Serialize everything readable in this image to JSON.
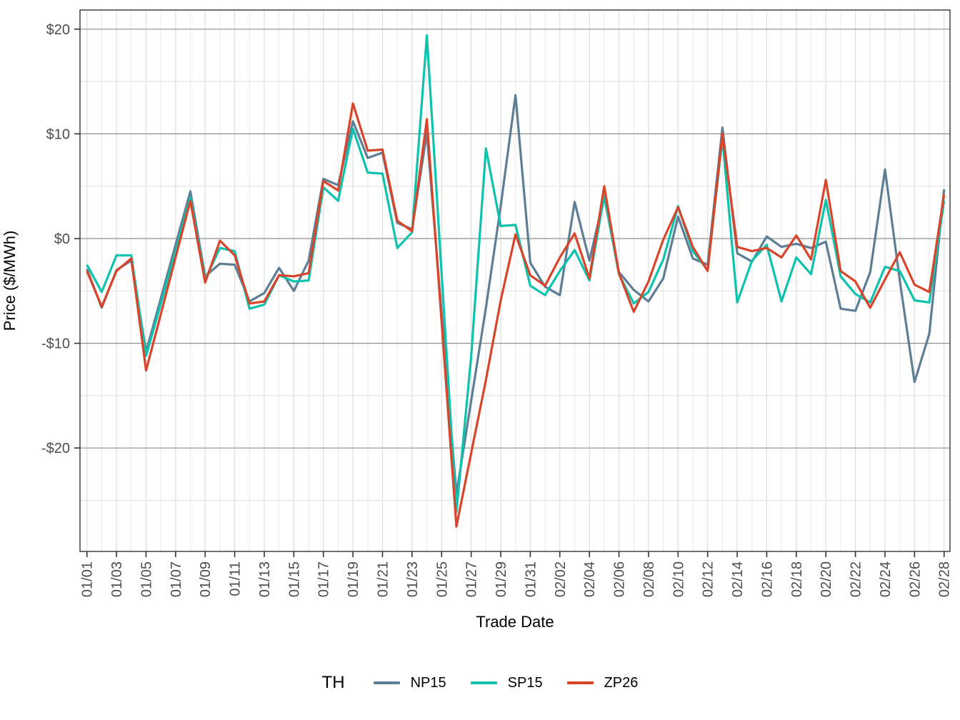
{
  "figure": {
    "xlabel": "Trade Date",
    "ylabel": "Price ($/MWh)"
  },
  "axes": {
    "y_tick_labels": [
      "$20",
      "$10",
      "$0",
      "-$10",
      "-$20"
    ],
    "y_tick_values": [
      20,
      10,
      0,
      -10,
      -20
    ],
    "y_minor_values": [
      15,
      5,
      -5,
      -15,
      -25
    ],
    "x_tick_labels": [
      "01/01",
      "01/03",
      "01/05",
      "01/07",
      "01/09",
      "01/11",
      "01/13",
      "01/15",
      "01/17",
      "01/19",
      "01/21",
      "01/23",
      "01/25",
      "01/27",
      "01/29",
      "01/31",
      "02/02",
      "02/04",
      "02/06",
      "02/08",
      "02/10",
      "02/12",
      "02/14",
      "02/16",
      "02/18",
      "02/20",
      "02/22",
      "02/24",
      "02/26",
      "02/28"
    ]
  },
  "legend": {
    "title": "TH",
    "entries": [
      {
        "label": "NP15",
        "color": "#5e7e96"
      },
      {
        "label": "SP15",
        "color": "#0dc3ae"
      },
      {
        "label": "ZP26",
        "color": "#d9452b"
      }
    ]
  },
  "style_colors": {
    "panel_border": "#333333",
    "grid_major_h": "#8f8f8f",
    "grid_minor_h": "#e4e4e4",
    "grid_major_v": "#dedede",
    "grid_minor_v": "#ececec",
    "tick_mark": "#333333",
    "tick_label": "#4d4d4d"
  },
  "chart_data": {
    "type": "line",
    "title": "",
    "xlabel": "Trade Date",
    "ylabel": "Price ($/MWh)",
    "x": [
      "01/01",
      "01/02",
      "01/03",
      "01/04",
      "01/05",
      "01/06",
      "01/07",
      "01/08",
      "01/09",
      "01/10",
      "01/11",
      "01/12",
      "01/13",
      "01/14",
      "01/15",
      "01/16",
      "01/17",
      "01/18",
      "01/19",
      "01/20",
      "01/21",
      "01/22",
      "01/23",
      "01/24",
      "01/25",
      "01/26",
      "01/27",
      "01/28",
      "01/29",
      "01/30",
      "01/31",
      "02/01",
      "02/02",
      "02/03",
      "02/04",
      "02/05",
      "02/06",
      "02/07",
      "02/08",
      "02/09",
      "02/10",
      "02/11",
      "02/12",
      "02/13",
      "02/14",
      "02/15",
      "02/16",
      "02/17",
      "02/18",
      "02/19",
      "02/20",
      "02/21",
      "02/22",
      "02/23",
      "02/24",
      "02/25",
      "02/26",
      "02/27",
      "02/28"
    ],
    "series": [
      {
        "name": "NP15",
        "color": "#5e7e96",
        "values": [
          -2.9,
          -6.6,
          -3.0,
          -2.1,
          -10.8,
          -5.7,
          -0.6,
          4.5,
          -3.6,
          -2.4,
          -2.5,
          -6.0,
          -5.2,
          -2.8,
          -5.0,
          -2.1,
          5.7,
          5.1,
          11.2,
          7.7,
          8.2,
          1.5,
          0.9,
          10.1,
          -7.2,
          -24.4,
          -15.5,
          -6.6,
          3.1,
          13.7,
          -2.3,
          -4.6,
          -5.4,
          3.5,
          -2.1,
          4.0,
          -3.2,
          -4.9,
          -6.0,
          -3.8,
          2.1,
          -1.9,
          -2.5,
          10.6,
          -1.4,
          -2.2,
          0.2,
          -0.8,
          -0.5,
          -0.9,
          -0.3,
          -6.7,
          -6.9,
          -3.2,
          6.6,
          -4.0,
          -13.7,
          -9.1,
          4.7
        ]
      },
      {
        "name": "SP15",
        "color": "#0dc3ae",
        "values": [
          -2.5,
          -5.1,
          -1.6,
          -1.6,
          -11.2,
          -6.2,
          -1.2,
          3.9,
          -3.9,
          -0.9,
          -1.2,
          -6.7,
          -6.3,
          -3.5,
          -4.1,
          -4.0,
          4.9,
          3.6,
          10.5,
          6.3,
          6.2,
          -0.9,
          0.6,
          19.4,
          -3.4,
          -26.1,
          -11.3,
          8.6,
          1.2,
          1.3,
          -4.5,
          -5.4,
          -3.1,
          -1.1,
          -4.0,
          4.1,
          -3.4,
          -6.2,
          -5.1,
          -2.0,
          3.1,
          -1.2,
          -3.0,
          9.6,
          -6.1,
          -2.1,
          -0.6,
          -6.0,
          -1.8,
          -3.4,
          3.7,
          -3.6,
          -5.3,
          -6.1,
          -2.7,
          -3.1,
          -5.9,
          -6.1,
          3.6
        ]
      },
      {
        "name": "ZP26",
        "color": "#d9452b",
        "values": [
          -3.1,
          -6.5,
          -3.1,
          -1.9,
          -12.6,
          -7.2,
          -1.8,
          3.6,
          -4.2,
          -0.2,
          -1.6,
          -6.2,
          -6.0,
          -3.5,
          -3.6,
          -3.3,
          5.5,
          4.6,
          12.9,
          8.4,
          8.5,
          1.7,
          0.7,
          11.4,
          -8.0,
          -27.5,
          -20.5,
          -13.5,
          -5.9,
          0.4,
          -3.5,
          -4.5,
          -1.8,
          0.5,
          -3.8,
          5.0,
          -3.3,
          -7.0,
          -4.1,
          -0.1,
          3.0,
          -0.8,
          -3.1,
          10.0,
          -0.8,
          -1.2,
          -0.9,
          -1.8,
          0.3,
          -2.0,
          5.6,
          -3.1,
          -4.1,
          -6.6,
          -3.9,
          -1.3,
          -4.4,
          -5.1,
          4.2
        ]
      }
    ],
    "ylim": [
      -29.9,
      21.8
    ],
    "x_tick_every": "2 days",
    "grid": "on",
    "legend_position": "bottom",
    "legend_title": "TH"
  }
}
